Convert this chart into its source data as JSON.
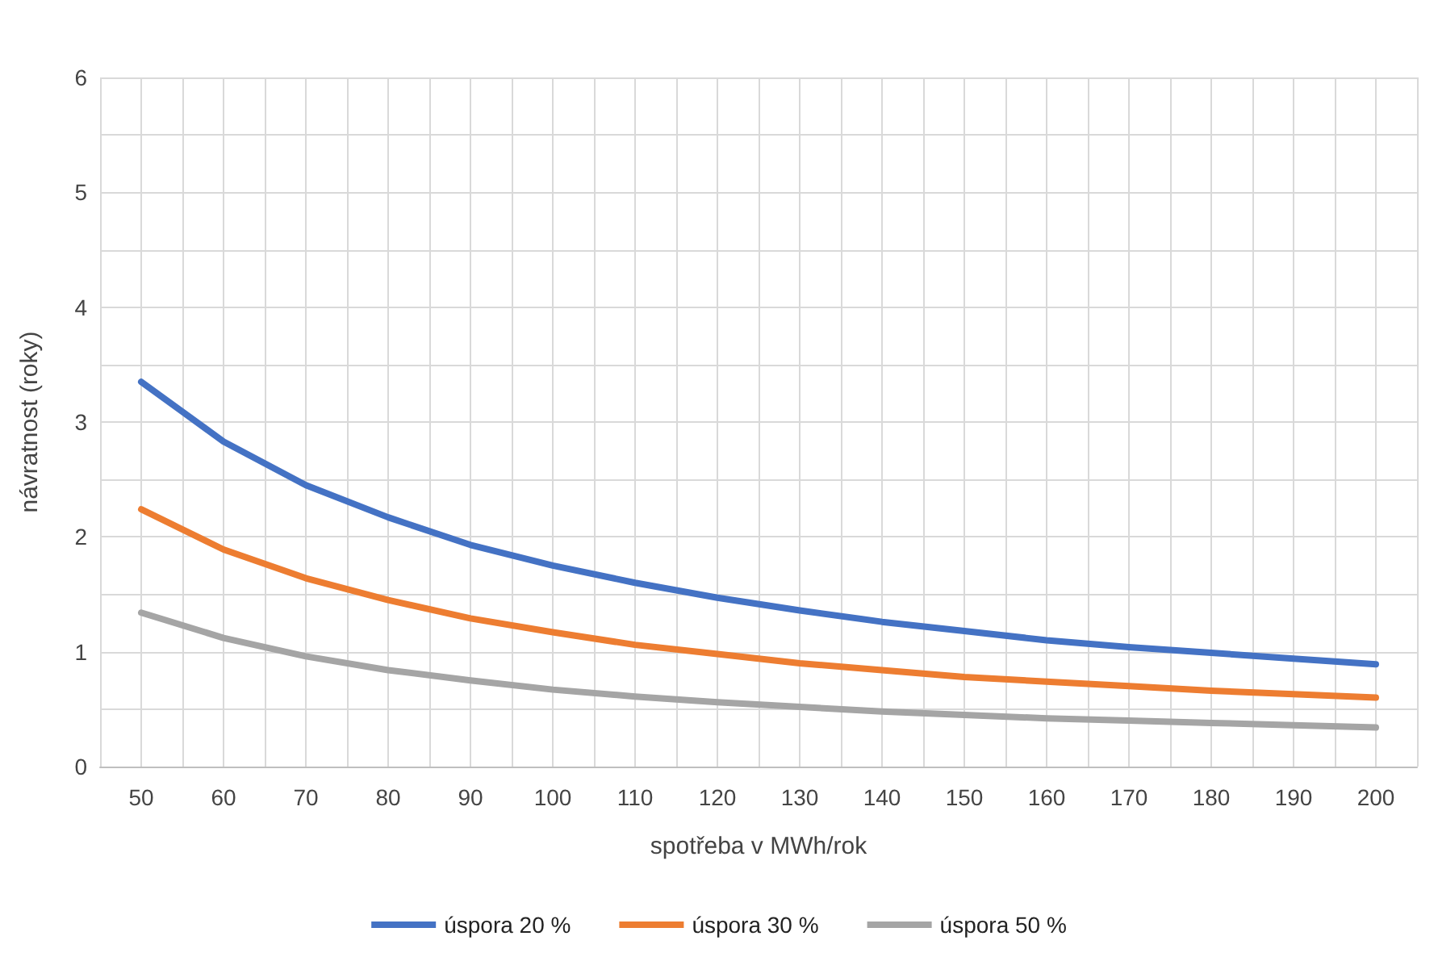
{
  "chart_data": {
    "type": "line",
    "xlabel": "spotřeba v MWh/rok",
    "ylabel": "návratnost (roky)",
    "x": [
      50,
      60,
      70,
      80,
      90,
      100,
      110,
      120,
      130,
      140,
      150,
      160,
      170,
      180,
      190,
      200
    ],
    "xlim": [
      45,
      205
    ],
    "xticks": [
      50,
      60,
      70,
      80,
      90,
      100,
      110,
      120,
      130,
      140,
      150,
      160,
      170,
      180,
      190,
      200
    ],
    "ylim": [
      0,
      6
    ],
    "yticks": [
      0,
      1,
      2,
      3,
      4,
      5,
      6
    ],
    "grid": true,
    "legend": "bottom",
    "marker": "none",
    "line_style": "solid",
    "series": [
      {
        "name": "úspora 20 %",
        "color": "#4472c4",
        "values": [
          3.35,
          2.83,
          2.45,
          2.17,
          1.93,
          1.75,
          1.6,
          1.47,
          1.36,
          1.26,
          1.18,
          1.1,
          1.04,
          0.99,
          0.94,
          0.89
        ]
      },
      {
        "name": "úspora 30 %",
        "color": "#ed7d31",
        "values": [
          2.24,
          1.89,
          1.64,
          1.45,
          1.29,
          1.17,
          1.06,
          0.98,
          0.9,
          0.84,
          0.78,
          0.74,
          0.7,
          0.66,
          0.63,
          0.6
        ]
      },
      {
        "name": "úspora 50 %",
        "color": "#a5a5a5",
        "values": [
          1.34,
          1.12,
          0.96,
          0.84,
          0.75,
          0.67,
          0.61,
          0.56,
          0.52,
          0.48,
          0.45,
          0.42,
          0.4,
          0.38,
          0.36,
          0.34
        ]
      }
    ]
  }
}
